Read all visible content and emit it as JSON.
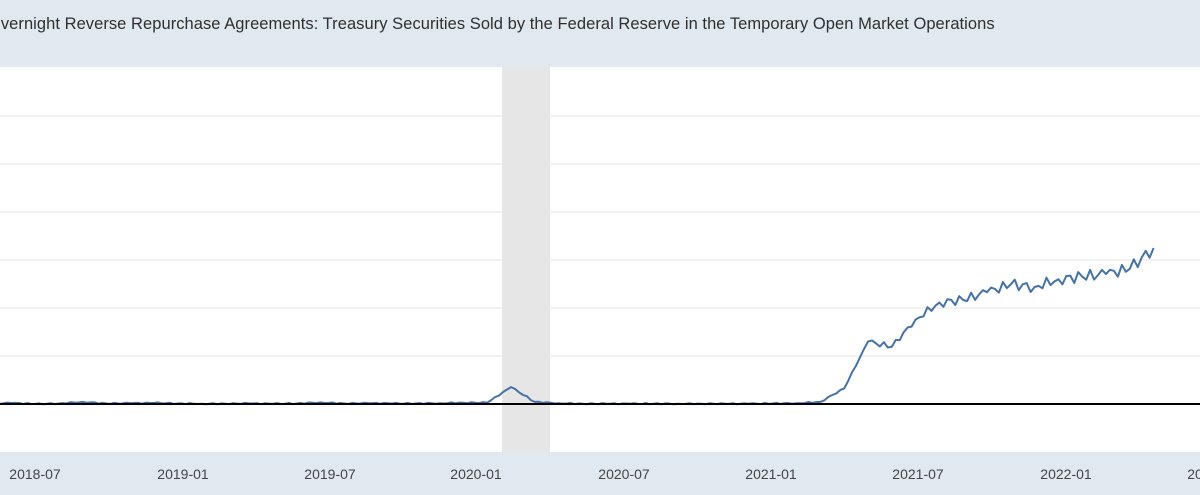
{
  "chart_data": {
    "type": "line",
    "title": "Overnight Reverse Repurchase Agreements: Treasury Securities Sold by the Federal Reserve in the Temporary Open Market Operations",
    "xlabel": "",
    "ylabel": "",
    "x_tick_labels": [
      "2018-07",
      "2019-01",
      "2019-07",
      "2020-01",
      "2020-07",
      "2021-01",
      "2021-07",
      "2022-01",
      "20"
    ],
    "grid": true,
    "recession_shading": {
      "start": "2020-02",
      "end": "2020-04"
    },
    "series_color": "#4572a7",
    "zero_line": true,
    "series": [
      {
        "x": [
          "2018-05",
          "2018-06",
          "2018-07",
          "2018-08",
          "2018-09",
          "2018-10",
          "2018-11",
          "2018-12",
          "2019-01",
          "2019-02",
          "2019-03",
          "2019-04",
          "2019-05",
          "2019-06",
          "2019-07",
          "2019-08",
          "2019-09",
          "2019-10",
          "2019-11",
          "2019-12",
          "2020-01",
          "2020-02",
          "2020-03",
          "2020-04",
          "2020-05",
          "2020-06",
          "2020-07",
          "2020-08",
          "2020-09",
          "2020-10",
          "2020-11",
          "2020-12",
          "2021-01",
          "2021-02",
          "2021-03",
          "2021-04",
          "2021-05",
          "2021-06",
          "2021-07",
          "2021-08",
          "2021-09",
          "2021-10",
          "2021-11",
          "2021-12",
          "2022-01",
          "2022-02",
          "2022-03",
          "2022-04",
          "2022-05",
          "2022-06"
        ],
        "values": [
          0,
          0.4,
          0,
          0.2,
          0.8,
          0.2,
          0.3,
          0.4,
          0.2,
          0.1,
          0.1,
          0.2,
          0.1,
          0.2,
          0.6,
          0.2,
          0.3,
          0.2,
          0.2,
          0.3,
          0.5,
          0.5,
          6.5,
          0.8,
          0.3,
          0.1,
          0.1,
          0.1,
          0.1,
          0.1,
          0.1,
          0.1,
          0.1,
          0.2,
          0.3,
          0.8,
          6.0,
          24.0,
          22.0,
          32.5,
          39.0,
          40.0,
          43.0,
          46.0,
          45.0,
          48.0,
          49.0,
          50.0,
          52.0,
          60.0
        ]
      }
    ]
  }
}
